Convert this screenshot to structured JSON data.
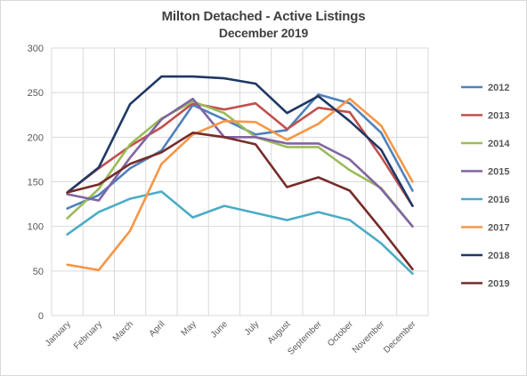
{
  "chart_data": {
    "type": "line",
    "title": "Milton Detached - Active Listings",
    "subtitle": "December 2019",
    "categories": [
      "January",
      "February",
      "March",
      "April",
      "May",
      "June",
      "July",
      "August",
      "September",
      "October",
      "November",
      "December"
    ],
    "ylim": [
      0,
      300
    ],
    "yticks": [
      0,
      50,
      100,
      150,
      200,
      250,
      300
    ],
    "grid": true,
    "legend_position": "right",
    "series": [
      {
        "name": "2012",
        "color": "#4f81bd",
        "values": [
          120,
          135,
          165,
          185,
          236,
          220,
          203,
          208,
          248,
          238,
          205,
          140
        ]
      },
      {
        "name": "2013",
        "color": "#c0504d",
        "values": [
          138,
          165,
          190,
          211,
          238,
          231,
          238,
          209,
          233,
          228,
          178,
          123
        ]
      },
      {
        "name": "2014",
        "color": "#9bbb59",
        "values": [
          109,
          142,
          192,
          221,
          240,
          227,
          200,
          189,
          189,
          163,
          143,
          100
        ]
      },
      {
        "name": "2015",
        "color": "#8064a2",
        "values": [
          136,
          129,
          177,
          220,
          243,
          200,
          200,
          193,
          193,
          175,
          142,
          100
        ]
      },
      {
        "name": "2016",
        "color": "#4bacc6",
        "values": [
          91,
          116,
          131,
          139,
          110,
          123,
          115,
          107,
          116,
          107,
          81,
          47
        ]
      },
      {
        "name": "2017",
        "color": "#f79646",
        "values": [
          57,
          51,
          95,
          170,
          203,
          218,
          217,
          197,
          215,
          243,
          213,
          150
        ]
      },
      {
        "name": "2018",
        "color": "#1f3864",
        "values": [
          138,
          166,
          237,
          268,
          268,
          266,
          260,
          227,
          246,
          218,
          186,
          123
        ]
      },
      {
        "name": "2019",
        "color": "#772c2a",
        "values": [
          138,
          147,
          170,
          183,
          205,
          200,
          192,
          144,
          155,
          140,
          97,
          52
        ]
      }
    ]
  }
}
